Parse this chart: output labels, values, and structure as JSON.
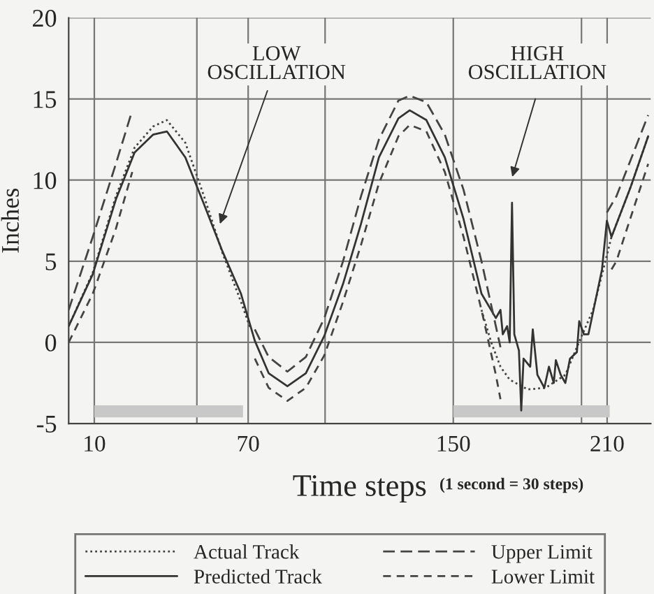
{
  "chart_data": {
    "type": "line",
    "xlabel": "Time steps",
    "ylabel": "Inches",
    "annotations": [
      "LOW\nOSCILLATION",
      "HIGH\nOSCILLATION",
      "(1 second = 30 steps)"
    ],
    "xlim": [
      0,
      227
    ],
    "ylim": [
      -5,
      20
    ],
    "xticks": [
      10,
      {
        "value": 50,
        "label": null
      },
      70,
      {
        "value": 100,
        "label": null
      },
      150,
      {
        "value": 200,
        "label": null
      },
      210
    ],
    "yticks": [
      -5,
      0,
      5,
      10,
      15,
      20
    ],
    "grid": true,
    "legend": "bottom",
    "series": [
      {
        "name": "Actual Track",
        "color": "#444444",
        "line_style": "dotted",
        "x": [
          0,
          9.4,
          18.4,
          25.7,
          32.9,
          38.3,
          45.5,
          52.8,
          60,
          67.2,
          71,
          null,
          161,
          164.8,
          168.4,
          172,
          179,
          186,
          193.7,
          199,
          204.5,
          211.7,
          219,
          226
        ],
        "values": [
          1.0,
          4.3,
          9.0,
          12.0,
          13.3,
          13.7,
          12.3,
          9.0,
          5.5,
          2.5,
          0.8,
          null,
          2.0,
          0,
          -1.5,
          -2.3,
          -2.9,
          -2.8,
          -2.0,
          0,
          2.0,
          6.5,
          9.5,
          12.7
        ]
      },
      {
        "name": "Predicted Track",
        "color": "#333333",
        "line_style": "solid",
        "x": [
          0,
          9.4,
          18.4,
          25.7,
          32.9,
          38.3,
          45.5,
          52.8,
          60,
          67.2,
          72.6,
          78,
          85.3,
          92.5,
          99.7,
          107,
          114,
          121,
          128.6,
          133,
          139.5,
          146.7,
          154,
          161,
          166.6,
          168.4,
          169.3,
          171,
          172,
          172.9,
          173.8,
          175.6,
          176.5,
          177.4,
          180,
          181,
          182.8,
          185.5,
          187.3,
          189.2,
          190,
          191.9,
          193.7,
          195.5,
          198.2,
          199.1,
          200.9,
          202.7,
          208,
          209.9,
          211.7,
          219,
          226
        ],
        "values": [
          1.0,
          4.2,
          8.8,
          11.7,
          12.8,
          13.0,
          11.4,
          8.5,
          5.6,
          3.0,
          0.1,
          -1.9,
          -2.7,
          -1.9,
          0.4,
          3.6,
          7.3,
          11.4,
          13.8,
          14.3,
          13.7,
          11.4,
          7.6,
          3.0,
          1.5,
          2.0,
          0.5,
          1.0,
          0.0,
          8.6,
          0.5,
          -0.5,
          -4.2,
          -1.0,
          -1.5,
          0.8,
          -2.0,
          -2.8,
          -1.5,
          -2.5,
          -1.1,
          -2.0,
          -2.5,
          -1.0,
          -0.6,
          1.3,
          0.5,
          0.5,
          4.5,
          7.5,
          6.5,
          9.5,
          12.7
        ]
      },
      {
        "name": "Upper Limit",
        "color": "#444444",
        "line_style": "longdash",
        "x": [
          0,
          9.4,
          18.4,
          24.8,
          null,
          72.6,
          78,
          85.3,
          92.5,
          99.7,
          107,
          114,
          121,
          128.6,
          133,
          139.5,
          146.7,
          154,
          161,
          166.6,
          168.4,
          null,
          209.9,
          213.6,
          226
        ],
        "values": [
          2.0,
          6.5,
          11.0,
          14.3,
          null,
          0.8,
          -0.9,
          -1.8,
          -0.9,
          1.5,
          5.0,
          9.0,
          12.5,
          14.9,
          15.2,
          14.8,
          12.8,
          9.4,
          5.0,
          1.0,
          -0.3,
          null,
          8.0,
          9.0,
          14.0
        ]
      },
      {
        "name": "Lower Limit",
        "color": "#444444",
        "line_style": "dashed",
        "x": [
          0,
          9.4,
          18.4,
          24.8,
          null,
          72.6,
          78,
          85.3,
          92.5,
          99.7,
          107,
          114,
          121,
          128.6,
          133,
          139.5,
          146.7,
          154,
          161,
          166.6,
          168.4,
          null,
          211.7,
          213.6,
          226
        ],
        "values": [
          0,
          3.0,
          7.0,
          10.5,
          null,
          -1.0,
          -2.8,
          -3.6,
          -2.8,
          -0.8,
          2.5,
          6.0,
          9.8,
          12.7,
          13.4,
          13.0,
          10.5,
          6.5,
          2.0,
          -2.0,
          -3.5,
          null,
          4.5,
          5.0,
          11.0
        ]
      }
    ]
  }
}
